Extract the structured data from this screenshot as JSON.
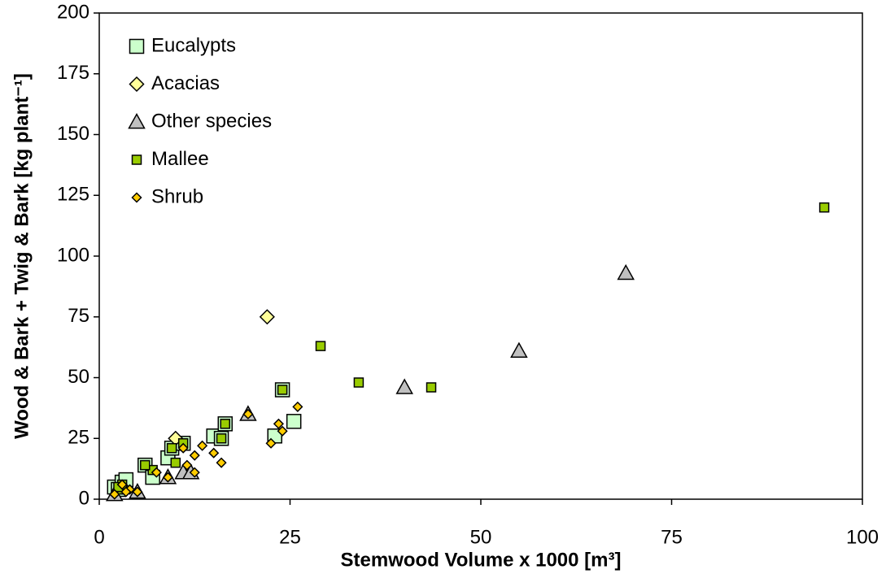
{
  "chart_data": {
    "type": "scatter",
    "xlabel": "Stemwood Volume x 1000 [m³]",
    "ylabel": "Wood & Bark + Twig & Bark [kg plant⁻¹]",
    "xlim": [
      0,
      100
    ],
    "xticks": [
      0,
      25,
      50,
      75,
      100
    ],
    "ylim": [
      0,
      200
    ],
    "yticks": [
      0,
      25,
      50,
      75,
      100,
      125,
      150,
      175,
      200
    ],
    "legend": "upper left",
    "series": [
      {
        "name": "Eucalypts",
        "color": "#ccffcc",
        "marker": "square",
        "size": 17,
        "x": [
          2,
          2.5,
          3,
          3.5,
          6,
          7,
          9,
          9.5,
          11,
          15,
          16,
          16.5,
          23,
          25.5,
          24
        ],
        "values": [
          5,
          4,
          7,
          8,
          14,
          9,
          17,
          21,
          23,
          26,
          25,
          31,
          26,
          32,
          45
        ]
      },
      {
        "name": "Acacias",
        "color": "#ffff99",
        "marker": "diamond",
        "size": 17,
        "x": [
          22,
          10,
          3
        ],
        "values": [
          75,
          25,
          5
        ]
      },
      {
        "name": "Other species",
        "color": "#c0c0c0",
        "marker": "triangle",
        "size": 19,
        "x": [
          2,
          5,
          9,
          11,
          12,
          19.5,
          40,
          55,
          69
        ],
        "values": [
          2,
          3,
          9,
          11,
          11,
          35,
          46,
          61,
          93
        ]
      },
      {
        "name": "Mallee",
        "color": "#99cc00",
        "marker": "square",
        "size": 11,
        "x": [
          95,
          29,
          34,
          43.5,
          24,
          16.5,
          16,
          11,
          9.5,
          10,
          7,
          6,
          3,
          3,
          2.5
        ],
        "values": [
          120,
          63,
          48,
          46,
          45,
          31,
          25,
          23,
          21,
          15,
          12,
          14,
          6,
          4,
          5
        ]
      },
      {
        "name": "Shrub",
        "color": "#ffcc00",
        "marker": "diamond",
        "size": 11,
        "x": [
          26,
          23.5,
          24,
          22.5,
          19.5,
          15,
          16,
          13.5,
          12.5,
          11,
          11.5,
          12.5,
          9,
          7.5,
          5,
          4,
          3,
          2,
          3.5
        ],
        "values": [
          38,
          31,
          28,
          23,
          35,
          19,
          15,
          22,
          18,
          21,
          14,
          11,
          9,
          11,
          3,
          4,
          6,
          2,
          3
        ]
      }
    ]
  }
}
